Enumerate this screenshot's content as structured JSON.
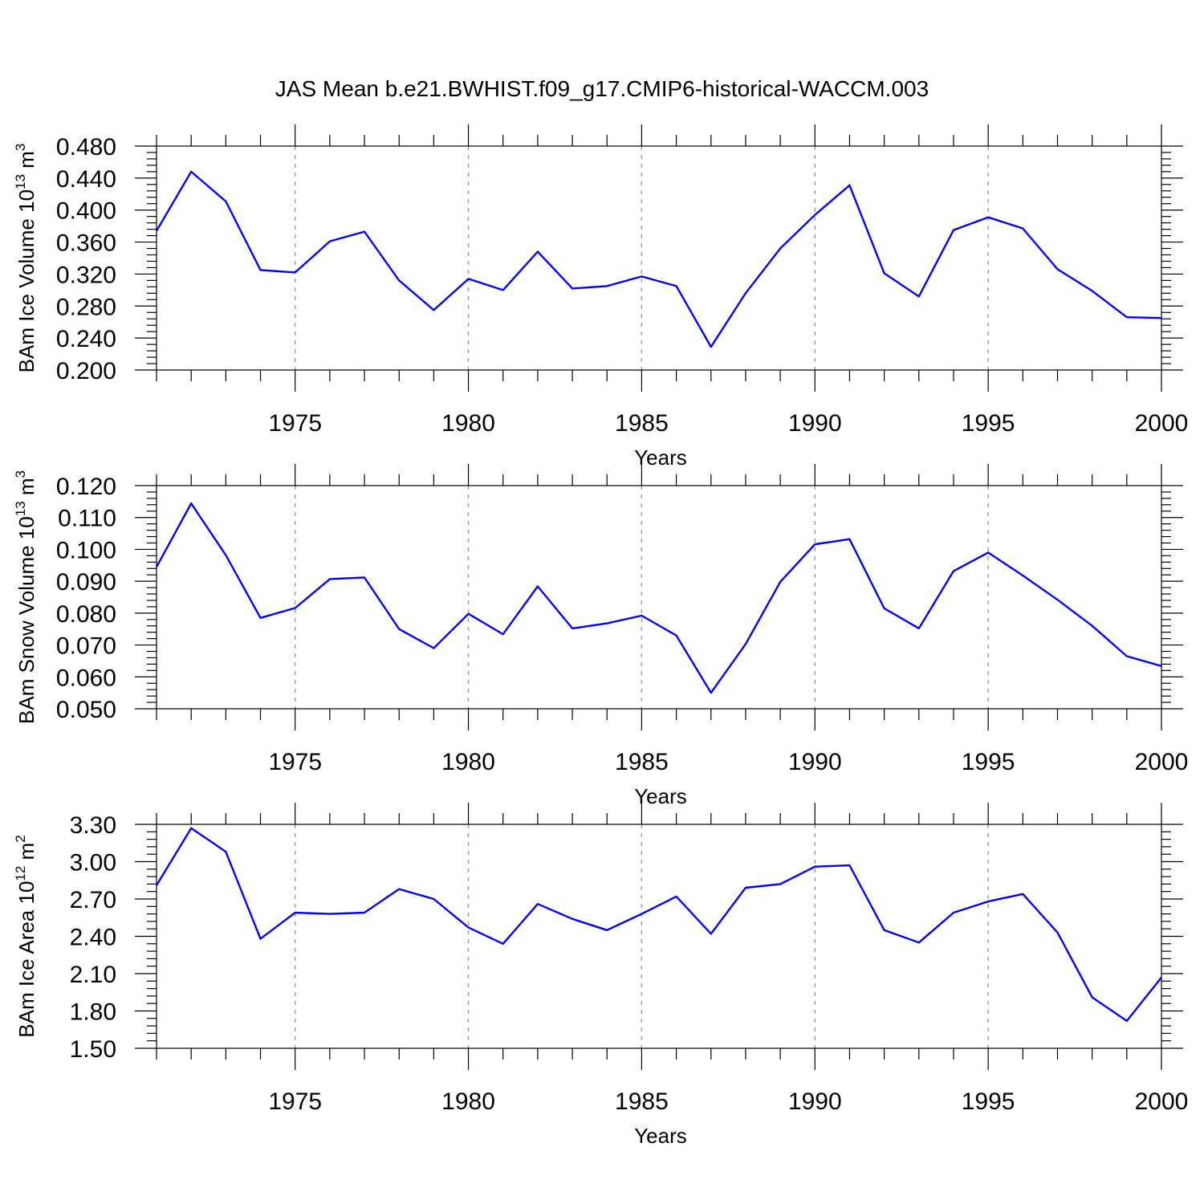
{
  "figure_title": "JAS Mean b.e21.BWHIST.f09_g17.CMIP6-historical-WACCM.003",
  "colors": {
    "line": "#0000ff",
    "axes": "#000000",
    "grid": "#999999"
  },
  "chart_data": [
    {
      "type": "line",
      "ylabel": {
        "main": "BAm Ice Volume 10",
        "exp": "13",
        "unit": " m",
        "unit_exp": "3"
      },
      "xlabel": "Years",
      "xlim": [
        1971,
        2000
      ],
      "ylim": [
        0.2,
        0.48
      ],
      "yticks": [
        "0.200",
        "0.240",
        "0.280",
        "0.320",
        "0.360",
        "0.400",
        "0.440",
        "0.480"
      ],
      "ytick_values": [
        0.2,
        0.24,
        0.28,
        0.32,
        0.36,
        0.4,
        0.44,
        0.48
      ],
      "xticks": [
        "1975",
        "1980",
        "1985",
        "1990",
        "1995",
        "2000"
      ],
      "xtick_values": [
        1975,
        1980,
        1985,
        1990,
        1995,
        2000
      ],
      "grid": "vertical dashed at major x ticks",
      "x": [
        1971,
        1972,
        1973,
        1974,
        1975,
        1976,
        1977,
        1978,
        1979,
        1980,
        1981,
        1982,
        1983,
        1984,
        1985,
        1986,
        1987,
        1988,
        1989,
        1990,
        1991,
        1992,
        1993,
        1994,
        1995,
        1996,
        1997,
        1998,
        1999,
        2000
      ],
      "values": [
        0.374,
        0.448,
        0.411,
        0.325,
        0.322,
        0.361,
        0.373,
        0.312,
        0.275,
        0.314,
        0.3,
        0.348,
        0.302,
        0.305,
        0.317,
        0.305,
        0.229,
        0.296,
        0.352,
        0.394,
        0.431,
        0.321,
        0.292,
        0.375,
        0.391,
        0.377,
        0.326,
        0.299,
        0.266,
        0.265
      ]
    },
    {
      "type": "line",
      "ylabel": {
        "main": "BAm Snow Volume 10",
        "exp": "13",
        "unit": " m",
        "unit_exp": "3"
      },
      "xlabel": "Years",
      "xlim": [
        1971,
        2000
      ],
      "ylim": [
        0.05,
        0.12
      ],
      "yticks": [
        "0.050",
        "0.060",
        "0.070",
        "0.080",
        "0.090",
        "0.100",
        "0.110",
        "0.120"
      ],
      "ytick_values": [
        0.05,
        0.06,
        0.07,
        0.08,
        0.09,
        0.1,
        0.11,
        0.12
      ],
      "xticks": [
        "1975",
        "1980",
        "1985",
        "1990",
        "1995",
        "2000"
      ],
      "xtick_values": [
        1975,
        1980,
        1985,
        1990,
        1995,
        2000
      ],
      "grid": "vertical dashed at major x ticks",
      "x": [
        1971,
        1972,
        1973,
        1974,
        1975,
        1976,
        1977,
        1978,
        1979,
        1980,
        1981,
        1982,
        1983,
        1984,
        1985,
        1986,
        1987,
        1988,
        1989,
        1990,
        1991,
        1992,
        1993,
        1994,
        1995,
        1996,
        1997,
        1998,
        1999,
        2000
      ],
      "values": [
        0.0945,
        0.1144,
        0.0982,
        0.0785,
        0.0816,
        0.0907,
        0.0912,
        0.075,
        0.069,
        0.0798,
        0.0734,
        0.0884,
        0.0752,
        0.0768,
        0.0792,
        0.073,
        0.055,
        0.0703,
        0.0898,
        0.1016,
        0.1032,
        0.0815,
        0.0752,
        0.0932,
        0.099,
        0.0918,
        0.0842,
        0.076,
        0.0665,
        0.0634
      ]
    },
    {
      "type": "line",
      "ylabel": {
        "main": "BAm Ice Area 10",
        "exp": "12",
        "unit": " m",
        "unit_exp": "2"
      },
      "xlabel": "Years",
      "xlim": [
        1971,
        2000
      ],
      "ylim": [
        1.5,
        3.3
      ],
      "yticks": [
        "1.50",
        "1.80",
        "2.10",
        "2.40",
        "2.70",
        "3.00",
        "3.30"
      ],
      "ytick_values": [
        1.5,
        1.8,
        2.1,
        2.4,
        2.7,
        3.0,
        3.3
      ],
      "xticks": [
        "1975",
        "1980",
        "1985",
        "1990",
        "1995",
        "2000"
      ],
      "xtick_values": [
        1975,
        1980,
        1985,
        1990,
        1995,
        2000
      ],
      "grid": "vertical dashed at major x ticks",
      "x": [
        1971,
        1972,
        1973,
        1974,
        1975,
        1976,
        1977,
        1978,
        1979,
        1980,
        1981,
        1982,
        1983,
        1984,
        1985,
        1986,
        1987,
        1988,
        1989,
        1990,
        1991,
        1992,
        1993,
        1994,
        1995,
        1996,
        1997,
        1998,
        1999,
        2000
      ],
      "values": [
        2.81,
        3.27,
        3.08,
        2.38,
        2.59,
        2.58,
        2.59,
        2.78,
        2.7,
        2.47,
        2.34,
        2.66,
        2.54,
        2.45,
        2.58,
        2.72,
        2.42,
        2.79,
        2.82,
        2.96,
        2.97,
        2.45,
        2.35,
        2.59,
        2.68,
        2.74,
        2.43,
        1.91,
        1.72,
        2.07
      ]
    }
  ]
}
